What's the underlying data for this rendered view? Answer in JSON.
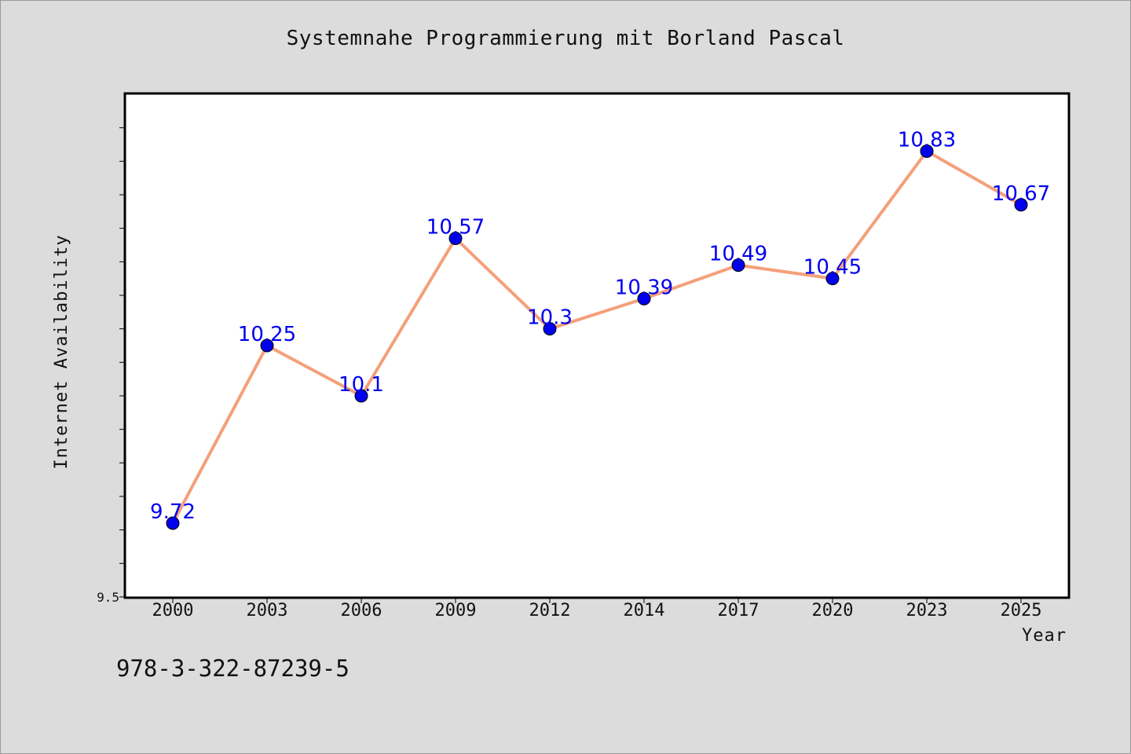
{
  "chart_data": {
    "type": "line",
    "title": "Systemnahe Programmierung mit Borland Pascal",
    "xlabel": "Year",
    "ylabel": "Internet Availability",
    "categories": [
      "2000",
      "2003",
      "2006",
      "2009",
      "2012",
      "2014",
      "2017",
      "2020",
      "2023",
      "2025"
    ],
    "series": [
      {
        "values": [
          9.72,
          10.25,
          10.1,
          10.57,
          10.3,
          10.39,
          10.49,
          10.45,
          10.83,
          10.67
        ],
        "data_labels": [
          "9.72",
          "10.25",
          "10.1",
          "10.57",
          "10.3",
          "10.39",
          "10.49",
          "10.45",
          "10.83",
          "10.67"
        ],
        "line_color": "#f4a07a",
        "marker_color": "#0000ee"
      }
    ],
    "ylim": [
      9.5,
      11.0
    ],
    "y_tick_labels": [
      "9.5"
    ],
    "y_minor_step": 0.1,
    "grid": false,
    "legend": "none",
    "background": "#dcdcdc",
    "plot_background": "#ffffff"
  },
  "footer": {
    "text": "978-3-322-87239-5"
  }
}
